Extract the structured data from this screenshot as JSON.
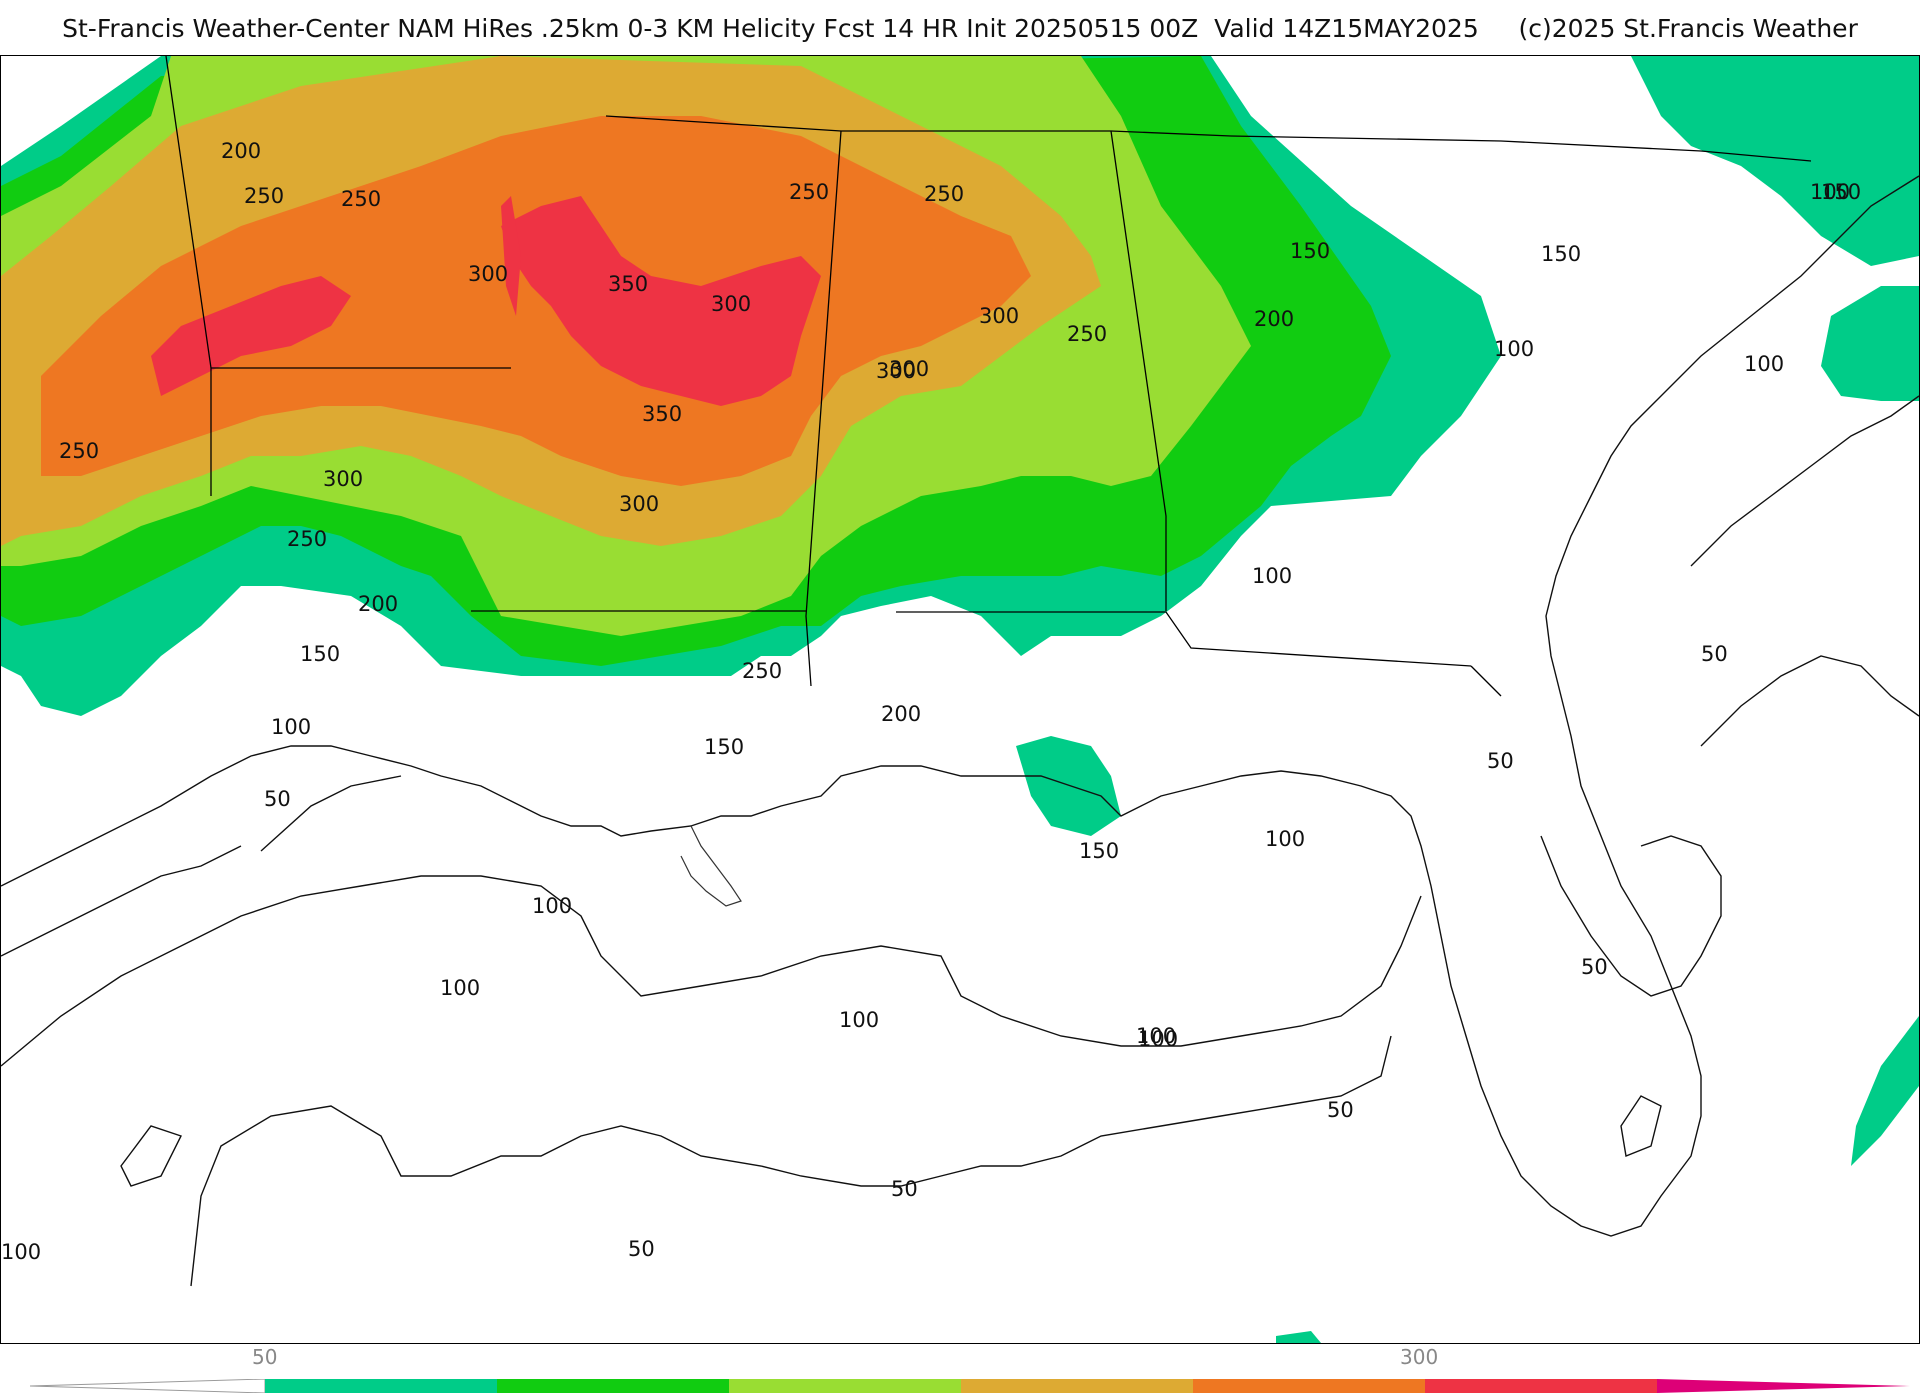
{
  "header": {
    "title": "St-Francis Weather-Center NAM HiRes .25km 0-3 KM Helicity Fcst 14 HR Init 20250515 00Z  Valid 14Z15MAY2025     (c)2025 St.Francis Weather"
  },
  "contour_labels": [
    "200",
    "250",
    "250",
    "300",
    "350",
    "300",
    "250",
    "250",
    "300",
    "300",
    "250",
    "300",
    "350",
    "300",
    "250",
    "300",
    "250",
    "200",
    "150",
    "250",
    "150",
    "200",
    "150",
    "100",
    "150",
    "100",
    "200",
    "100",
    "100",
    "150",
    "100",
    "150",
    "100",
    "50",
    "100",
    "100",
    "50",
    "100",
    "100",
    "100",
    "50",
    "50",
    "50",
    "50",
    "100",
    "50"
  ],
  "colorbar": {
    "tick_labels": [
      "50",
      "300"
    ],
    "colors": [
      "#ffffff",
      "#00cc88",
      "#11cc11",
      "#99dd33",
      "#ddaa33",
      "#ee7722",
      "#ee3344",
      "#dd0077"
    ]
  },
  "fill_colors": {
    "teal": "#00cc88",
    "green": "#11cc11",
    "lime": "#99dd33",
    "gold": "#ddaa33",
    "orange": "#ee7722",
    "red": "#ee3344"
  }
}
